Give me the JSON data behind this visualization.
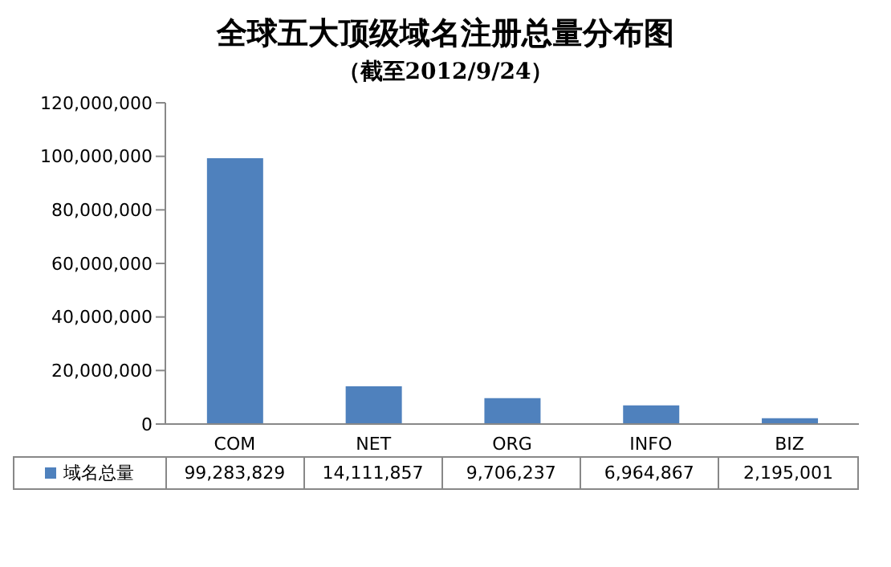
{
  "chart_data": {
    "type": "bar",
    "title": "全球五大顶级域名注册总量分布图",
    "subtitle": "（截至2012/9/24）",
    "categories": [
      "COM",
      "NET",
      "ORG",
      "INFO",
      "BIZ"
    ],
    "series": [
      {
        "name": "域名总量",
        "color": "#4f81bd",
        "values": [
          99283829,
          14111857,
          9706237,
          6964867,
          2195001
        ],
        "value_labels": [
          "99,283,829",
          "14,111,857",
          "9,706,237",
          "6,964,867",
          "2,195,001"
        ]
      }
    ],
    "ylim": [
      0,
      120000000
    ],
    "yticks": [
      0,
      {
        "value": 20000000,
        "label": "20,000,000"
      },
      {
        "value": 40000000,
        "label": "40,000,000"
      },
      {
        "value": 60000000,
        "label": "60,000,000"
      },
      {
        "value": 80000000,
        "label": "80,000,000"
      },
      {
        "value": 100000000,
        "label": "100,000,000"
      },
      {
        "value": 120000000,
        "label": "120,000,000"
      }
    ],
    "grid": false,
    "legend": "bottom"
  }
}
